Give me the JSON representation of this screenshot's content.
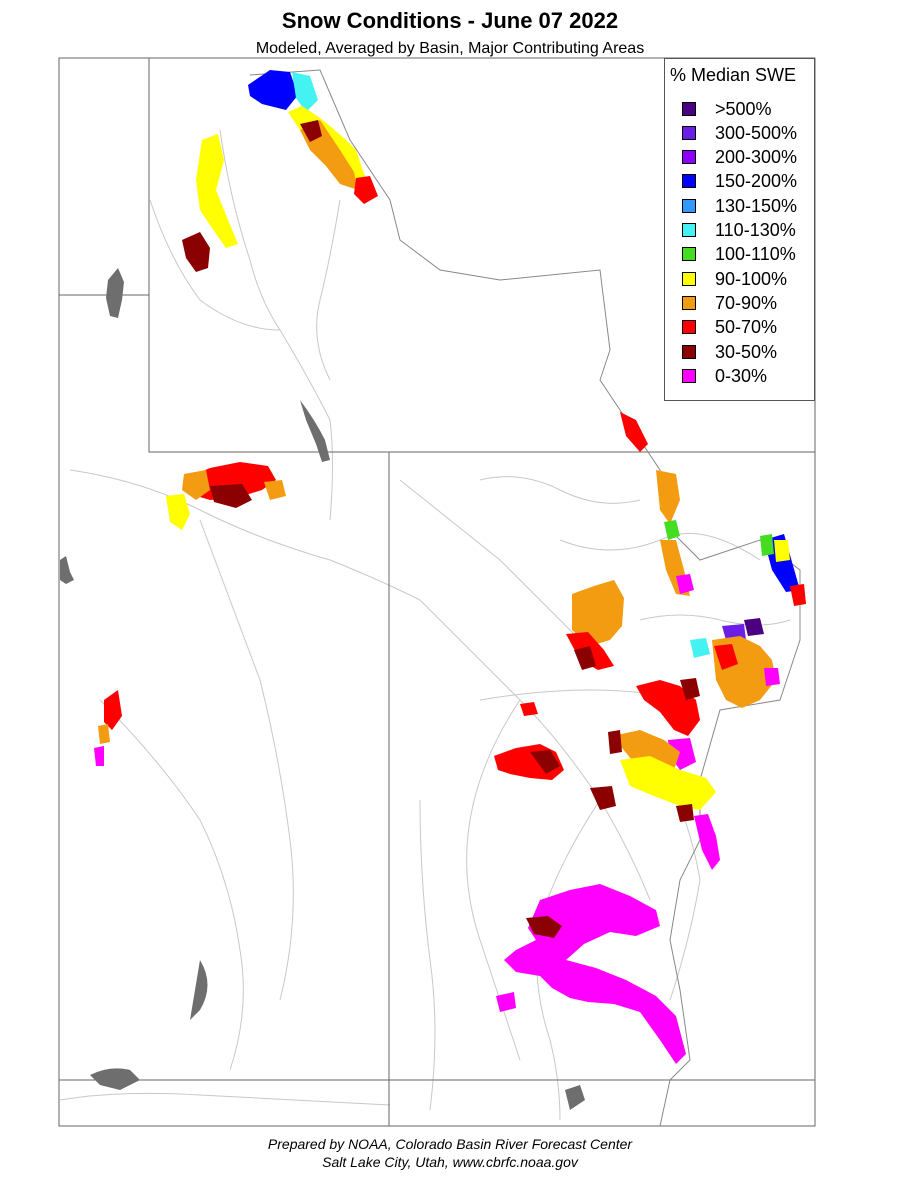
{
  "title": "Snow Conditions - June 07 2022",
  "subtitle": "Modeled, Averaged by Basin, Major Contributing Areas",
  "legend": {
    "title": "% Median SWE",
    "items": [
      {
        "label": ">500%",
        "color": "#4b0082"
      },
      {
        "label": "300-500%",
        "color": "#6a1ee6"
      },
      {
        "label": "200-300%",
        "color": "#8b00ff"
      },
      {
        "label": "150-200%",
        "color": "#0000ff"
      },
      {
        "label": "130-150%",
        "color": "#3399ff"
      },
      {
        "label": "110-130%",
        "color": "#44f2f2"
      },
      {
        "label": "100-110%",
        "color": "#44dd22"
      },
      {
        "label": "90-100%",
        "color": "#ffff00"
      },
      {
        "label": "70-90%",
        "color": "#f39c12"
      },
      {
        "label": "50-70%",
        "color": "#ff0000"
      },
      {
        "label": "30-50%",
        "color": "#8b0000"
      },
      {
        "label": "0-30%",
        "color": "#ff00ff"
      }
    ]
  },
  "footer": {
    "line1": "Prepared by NOAA, Colorado Basin River Forecast Center",
    "line2": "Salt Lake City, Utah, www.cbrfc.noaa.gov"
  },
  "colors": {
    "state_border": "#666666",
    "river": "#c8c8c8",
    "lake": "#6e6e6e"
  }
}
